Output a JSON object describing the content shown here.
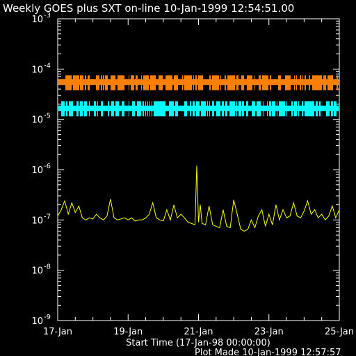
{
  "chart_data": {
    "type": "line",
    "title": "Weekly GOES plus SXT on-line 10-Jan-1999 12:54:51.00",
    "xlabel": "Start Time (17-Jan-98 00:00:00)",
    "footer": "Plot Made 10-Jan-1999 12:57:57",
    "x_ticks": [
      "17-Jan",
      "19-Jan",
      "21-Jan",
      "23-Jan",
      "25-Jan"
    ],
    "x_range_days": [
      0,
      8
    ],
    "y_scale": "log",
    "ylim": [
      1e-09,
      0.001
    ],
    "y_ticks": [
      {
        "base": "10",
        "exp": "-9",
        "value": 1e-09
      },
      {
        "base": "10",
        "exp": "-8",
        "value": 1e-08
      },
      {
        "base": "10",
        "exp": "-7",
        "value": 1e-07
      },
      {
        "base": "10",
        "exp": "-6",
        "value": 1e-06
      },
      {
        "base": "10",
        "exp": "-5",
        "value": 1e-05
      },
      {
        "base": "10",
        "exp": "-4",
        "value": 0.0001
      },
      {
        "base": "10",
        "exp": "-3",
        "value": 0.001
      }
    ],
    "grid": false,
    "series": [
      {
        "color": "#ff8000",
        "style": "band",
        "level": 5.5e-05,
        "low": 3.8e-05,
        "high": 7.5e-05
      },
      {
        "color": "#00ffff",
        "style": "band",
        "level": 1.65e-05,
        "low": 1.15e-05,
        "high": 2.3e-05
      },
      {
        "color": "#ffff00",
        "style": "line",
        "x_days": [
          0,
          0.1,
          0.2,
          0.3,
          0.4,
          0.5,
          0.6,
          0.7,
          0.8,
          0.9,
          1.0,
          1.1,
          1.2,
          1.3,
          1.4,
          1.5,
          1.6,
          1.7,
          1.8,
          1.9,
          2.0,
          2.1,
          2.2,
          2.3,
          2.4,
          2.5,
          2.6,
          2.7,
          2.8,
          2.9,
          3.0,
          3.1,
          3.2,
          3.3,
          3.4,
          3.5,
          3.6,
          3.7,
          3.8,
          3.9,
          3.95,
          4.0,
          4.05,
          4.1,
          4.2,
          4.3,
          4.4,
          4.5,
          4.6,
          4.7,
          4.8,
          4.9,
          5.0,
          5.1,
          5.2,
          5.3,
          5.4,
          5.5,
          5.6,
          5.7,
          5.8,
          5.9,
          6.0,
          6.1,
          6.2,
          6.3,
          6.4,
          6.5,
          6.6,
          6.7,
          6.8,
          6.9,
          7.0,
          7.1,
          7.2,
          7.3,
          7.4,
          7.5,
          7.6,
          7.7,
          7.8,
          7.9,
          8.0
        ],
        "values": [
          1.2e-07,
          1.6e-07,
          2.4e-07,
          1.3e-07,
          2.2e-07,
          1.4e-07,
          1.9e-07,
          1.1e-07,
          1e-07,
          1.1e-07,
          1.05e-07,
          1.3e-07,
          1.1e-07,
          1e-07,
          1.2e-07,
          2.6e-07,
          1.1e-07,
          1e-07,
          1.05e-07,
          1.1e-07,
          1e-07,
          1.1e-07,
          9.5e-08,
          1e-07,
          1e-07,
          1.1e-07,
          1.3e-07,
          2.2e-07,
          1.1e-07,
          1e-07,
          9.5e-08,
          1.6e-07,
          1e-07,
          2e-07,
          1.1e-07,
          1.3e-07,
          1.1e-07,
          9e-08,
          8.5e-08,
          8e-08,
          1.2e-06,
          9e-08,
          2e-07,
          8.5e-08,
          8e-08,
          1.9e-07,
          8e-08,
          7.5e-08,
          7e-08,
          1.6e-07,
          7.5e-08,
          7e-08,
          2.5e-07,
          1.3e-07,
          6.5e-08,
          6e-08,
          6.5e-08,
          1e-07,
          7e-08,
          1.2e-07,
          1.6e-07,
          7.5e-08,
          1.3e-07,
          8e-08,
          2e-07,
          1e-07,
          1.6e-07,
          1.1e-07,
          1.2e-07,
          2.2e-07,
          1.2e-07,
          1.1e-07,
          1.5e-07,
          2.4e-07,
          1.3e-07,
          1.6e-07,
          1.1e-07,
          1.3e-07,
          1e-07,
          1.2e-07,
          1.9e-07,
          1.1e-07,
          1.6e-07
        ]
      }
    ]
  }
}
